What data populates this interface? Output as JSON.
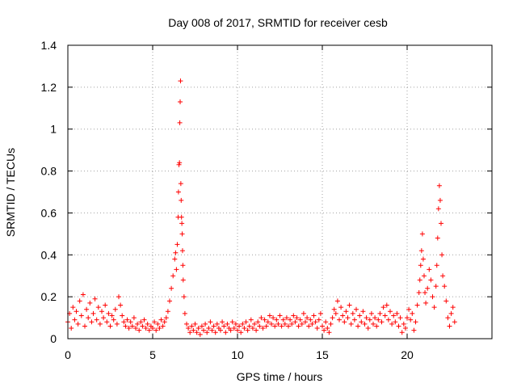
{
  "chart_data": {
    "type": "scatter",
    "title": "Day 008 of 2017, SRMTID for receiver cesb",
    "xlabel": "GPS time / hours",
    "ylabel": "SRMTID / TECUs",
    "xlim": [
      0,
      25
    ],
    "ylim": [
      0,
      1.4
    ],
    "xticks": [
      0,
      5,
      10,
      15,
      20
    ],
    "xtick_labels": [
      "0",
      "5",
      "10",
      "15",
      "20"
    ],
    "yticks": [
      0,
      0.2,
      0.4,
      0.6,
      0.8,
      1.0,
      1.2,
      1.4
    ],
    "ytick_labels": [
      "0",
      "0.2",
      "0.4",
      "0.6",
      "0.8",
      "1",
      "1.2",
      "1.4"
    ],
    "grid": true,
    "marker": "plus",
    "marker_color": "#ff0000",
    "series": [
      {
        "name": "SRMTID",
        "points": [
          [
            0.0,
            0.08
          ],
          [
            0.1,
            0.12
          ],
          [
            0.2,
            0.05
          ],
          [
            0.3,
            0.15
          ],
          [
            0.4,
            0.09
          ],
          [
            0.5,
            0.13
          ],
          [
            0.6,
            0.07
          ],
          [
            0.7,
            0.18
          ],
          [
            0.8,
            0.11
          ],
          [
            0.9,
            0.21
          ],
          [
            1.0,
            0.06
          ],
          [
            1.1,
            0.14
          ],
          [
            1.2,
            0.1
          ],
          [
            1.3,
            0.17
          ],
          [
            1.4,
            0.08
          ],
          [
            1.5,
            0.12
          ],
          [
            1.6,
            0.19
          ],
          [
            1.7,
            0.09
          ],
          [
            1.8,
            0.15
          ],
          [
            1.9,
            0.07
          ],
          [
            2.0,
            0.13
          ],
          [
            2.1,
            0.1
          ],
          [
            2.2,
            0.16
          ],
          [
            2.3,
            0.08
          ],
          [
            2.4,
            0.12
          ],
          [
            2.5,
            0.06
          ],
          [
            2.6,
            0.11
          ],
          [
            2.7,
            0.09
          ],
          [
            2.8,
            0.14
          ],
          [
            2.9,
            0.07
          ],
          [
            3.0,
            0.2
          ],
          [
            3.1,
            0.16
          ],
          [
            3.2,
            0.11
          ],
          [
            3.3,
            0.08
          ],
          [
            3.4,
            0.06
          ],
          [
            3.5,
            0.09
          ],
          [
            3.6,
            0.05
          ],
          [
            3.7,
            0.08
          ],
          [
            3.8,
            0.06
          ],
          [
            3.9,
            0.1
          ],
          [
            4.0,
            0.05
          ],
          [
            4.1,
            0.07
          ],
          [
            4.2,
            0.04
          ],
          [
            4.3,
            0.08
          ],
          [
            4.4,
            0.06
          ],
          [
            4.5,
            0.09
          ],
          [
            4.6,
            0.05
          ],
          [
            4.7,
            0.07
          ],
          [
            4.8,
            0.04
          ],
          [
            4.9,
            0.06
          ],
          [
            5.0,
            0.05
          ],
          [
            5.1,
            0.08
          ],
          [
            5.2,
            0.04
          ],
          [
            5.3,
            0.07
          ],
          [
            5.4,
            0.05
          ],
          [
            5.5,
            0.09
          ],
          [
            5.6,
            0.06
          ],
          [
            5.7,
            0.08
          ],
          [
            5.8,
            0.1
          ],
          [
            5.9,
            0.13
          ],
          [
            6.0,
            0.18
          ],
          [
            6.1,
            0.24
          ],
          [
            6.2,
            0.3
          ],
          [
            6.3,
            0.38
          ],
          [
            6.35,
            0.41
          ],
          [
            6.4,
            0.33
          ],
          [
            6.45,
            0.45
          ],
          [
            6.5,
            0.58
          ],
          [
            6.52,
            0.7
          ],
          [
            6.55,
            0.83
          ],
          [
            6.58,
            0.84
          ],
          [
            6.6,
            1.03
          ],
          [
            6.62,
            1.13
          ],
          [
            6.64,
            1.23
          ],
          [
            6.66,
            0.74
          ],
          [
            6.68,
            0.66
          ],
          [
            6.7,
            0.58
          ],
          [
            6.72,
            0.55
          ],
          [
            6.74,
            0.5
          ],
          [
            6.76,
            0.42
          ],
          [
            6.78,
            0.35
          ],
          [
            6.8,
            0.28
          ],
          [
            6.85,
            0.2
          ],
          [
            6.9,
            0.12
          ],
          [
            7.0,
            0.07
          ],
          [
            7.1,
            0.05
          ],
          [
            7.2,
            0.03
          ],
          [
            7.3,
            0.06
          ],
          [
            7.4,
            0.04
          ],
          [
            7.5,
            0.07
          ],
          [
            7.6,
            0.03
          ],
          [
            7.7,
            0.05
          ],
          [
            7.8,
            0.02
          ],
          [
            7.9,
            0.06
          ],
          [
            8.0,
            0.04
          ],
          [
            8.1,
            0.07
          ],
          [
            8.2,
            0.03
          ],
          [
            8.3,
            0.05
          ],
          [
            8.4,
            0.08
          ],
          [
            8.5,
            0.04
          ],
          [
            8.6,
            0.06
          ],
          [
            8.7,
            0.03
          ],
          [
            8.8,
            0.07
          ],
          [
            8.9,
            0.05
          ],
          [
            9.0,
            0.04
          ],
          [
            9.1,
            0.08
          ],
          [
            9.2,
            0.06
          ],
          [
            9.3,
            0.03
          ],
          [
            9.4,
            0.07
          ],
          [
            9.5,
            0.05
          ],
          [
            9.6,
            0.04
          ],
          [
            9.7,
            0.08
          ],
          [
            9.8,
            0.05
          ],
          [
            9.9,
            0.07
          ],
          [
            10.0,
            0.04
          ],
          [
            10.1,
            0.06
          ],
          [
            10.2,
            0.03
          ],
          [
            10.3,
            0.07
          ],
          [
            10.4,
            0.05
          ],
          [
            10.5,
            0.08
          ],
          [
            10.6,
            0.04
          ],
          [
            10.7,
            0.06
          ],
          [
            10.8,
            0.09
          ],
          [
            10.9,
            0.05
          ],
          [
            11.0,
            0.07
          ],
          [
            11.1,
            0.04
          ],
          [
            11.2,
            0.08
          ],
          [
            11.3,
            0.06
          ],
          [
            11.4,
            0.1
          ],
          [
            11.5,
            0.05
          ],
          [
            11.6,
            0.09
          ],
          [
            11.7,
            0.06
          ],
          [
            11.8,
            0.08
          ],
          [
            11.9,
            0.11
          ],
          [
            12.0,
            0.07
          ],
          [
            12.1,
            0.1
          ],
          [
            12.2,
            0.06
          ],
          [
            12.3,
            0.09
          ],
          [
            12.4,
            0.07
          ],
          [
            12.5,
            0.11
          ],
          [
            12.6,
            0.06
          ],
          [
            12.7,
            0.09
          ],
          [
            12.8,
            0.07
          ],
          [
            12.9,
            0.1
          ],
          [
            13.0,
            0.06
          ],
          [
            13.1,
            0.09
          ],
          [
            13.2,
            0.07
          ],
          [
            13.3,
            0.11
          ],
          [
            13.4,
            0.08
          ],
          [
            13.5,
            0.1
          ],
          [
            13.6,
            0.06
          ],
          [
            13.7,
            0.09
          ],
          [
            13.8,
            0.07
          ],
          [
            13.9,
            0.12
          ],
          [
            14.0,
            0.08
          ],
          [
            14.1,
            0.1
          ],
          [
            14.2,
            0.06
          ],
          [
            14.3,
            0.09
          ],
          [
            14.4,
            0.07
          ],
          [
            14.5,
            0.11
          ],
          [
            14.6,
            0.08
          ],
          [
            14.7,
            0.05
          ],
          [
            14.8,
            0.09
          ],
          [
            14.9,
            0.12
          ],
          [
            15.0,
            0.06
          ],
          [
            15.1,
            0.04
          ],
          [
            15.2,
            0.08
          ],
          [
            15.3,
            0.05
          ],
          [
            15.4,
            0.03
          ],
          [
            15.5,
            0.07
          ],
          [
            15.6,
            0.1
          ],
          [
            15.7,
            0.14
          ],
          [
            15.8,
            0.12
          ],
          [
            15.9,
            0.18
          ],
          [
            16.0,
            0.09
          ],
          [
            16.1,
            0.15
          ],
          [
            16.2,
            0.11
          ],
          [
            16.3,
            0.08
          ],
          [
            16.4,
            0.13
          ],
          [
            16.5,
            0.1
          ],
          [
            16.6,
            0.16
          ],
          [
            16.7,
            0.07
          ],
          [
            16.8,
            0.12
          ],
          [
            16.9,
            0.09
          ],
          [
            17.0,
            0.14
          ],
          [
            17.1,
            0.06
          ],
          [
            17.2,
            0.11
          ],
          [
            17.3,
            0.08
          ],
          [
            17.4,
            0.13
          ],
          [
            17.5,
            0.07
          ],
          [
            17.6,
            0.1
          ],
          [
            17.7,
            0.05
          ],
          [
            17.8,
            0.09
          ],
          [
            17.9,
            0.12
          ],
          [
            18.0,
            0.07
          ],
          [
            18.1,
            0.1
          ],
          [
            18.2,
            0.06
          ],
          [
            18.3,
            0.09
          ],
          [
            18.4,
            0.12
          ],
          [
            18.5,
            0.08
          ],
          [
            18.6,
            0.15
          ],
          [
            18.7,
            0.11
          ],
          [
            18.8,
            0.16
          ],
          [
            18.9,
            0.09
          ],
          [
            19.0,
            0.13
          ],
          [
            19.1,
            0.07
          ],
          [
            19.2,
            0.11
          ],
          [
            19.3,
            0.08
          ],
          [
            19.4,
            0.12
          ],
          [
            19.5,
            0.06
          ],
          [
            19.6,
            0.1
          ],
          [
            19.7,
            0.03
          ],
          [
            19.8,
            0.07
          ],
          [
            19.9,
            0.05
          ],
          [
            20.0,
            0.1
          ],
          [
            20.1,
            0.14
          ],
          [
            20.2,
            0.09
          ],
          [
            20.3,
            0.12
          ],
          [
            20.4,
            0.04
          ],
          [
            20.5,
            0.08
          ],
          [
            20.6,
            0.16
          ],
          [
            20.7,
            0.22
          ],
          [
            20.75,
            0.28
          ],
          [
            20.8,
            0.35
          ],
          [
            20.85,
            0.42
          ],
          [
            20.9,
            0.5
          ],
          [
            20.95,
            0.38
          ],
          [
            21.0,
            0.3
          ],
          [
            21.05,
            0.22
          ],
          [
            21.1,
            0.17
          ],
          [
            21.2,
            0.24
          ],
          [
            21.3,
            0.33
          ],
          [
            21.4,
            0.28
          ],
          [
            21.5,
            0.2
          ],
          [
            21.6,
            0.15
          ],
          [
            21.7,
            0.25
          ],
          [
            21.75,
            0.35
          ],
          [
            21.8,
            0.48
          ],
          [
            21.85,
            0.62
          ],
          [
            21.9,
            0.73
          ],
          [
            21.95,
            0.66
          ],
          [
            22.0,
            0.55
          ],
          [
            22.05,
            0.4
          ],
          [
            22.1,
            0.3
          ],
          [
            22.2,
            0.25
          ],
          [
            22.3,
            0.18
          ],
          [
            22.4,
            0.1
          ],
          [
            22.5,
            0.06
          ],
          [
            22.6,
            0.12
          ],
          [
            22.7,
            0.15
          ],
          [
            22.8,
            0.08
          ]
        ]
      }
    ]
  }
}
